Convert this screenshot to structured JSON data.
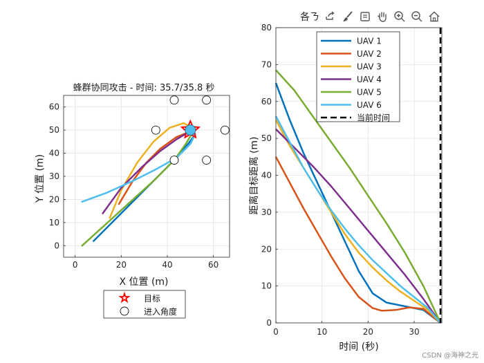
{
  "toolbar": {
    "label": "各ㄋ",
    "icons": [
      "export-icon",
      "brush-icon",
      "data-tips-icon",
      "pan-icon",
      "zoom-in-icon",
      "zoom-out-icon",
      "home-icon"
    ]
  },
  "watermark": "CSDN @海神之光",
  "colors": {
    "UAV 1": "#0072BD",
    "UAV 2": "#D95319",
    "UAV 3": "#EDB120",
    "UAV 4": "#7E2F8E",
    "UAV 5": "#77AC30",
    "UAV 6": "#4DBEEE",
    "target": "#ff0000",
    "uav_marker": "#4DBEEE"
  },
  "chart_data": [
    {
      "type": "line",
      "title": "蜂群协同攻击 - 时间: 35.7/35.8 秒",
      "xlabel": "X 位置 (m)",
      "ylabel": "Y 位置 (m)",
      "xlim": [
        -5,
        67
      ],
      "ylim": [
        -5,
        65
      ],
      "xticks": [
        0,
        20,
        40,
        60
      ],
      "yticks": [
        0,
        10,
        20,
        30,
        40,
        50,
        60
      ],
      "grid": true,
      "legend": {
        "placement": "below",
        "entries": [
          "目标",
          "进入角度"
        ]
      },
      "target": {
        "x": 50,
        "y": 50
      },
      "entry_points": [
        {
          "x": 43,
          "y": 63
        },
        {
          "x": 57,
          "y": 63
        },
        {
          "x": 35,
          "y": 50
        },
        {
          "x": 65,
          "y": 50
        },
        {
          "x": 43,
          "y": 37
        },
        {
          "x": 57,
          "y": 37
        }
      ],
      "series": [
        {
          "name": "UAV 1",
          "points": [
            [
              8,
              2
            ],
            [
              20,
              14
            ],
            [
              32,
              26
            ],
            [
              42,
              36
            ],
            [
              49,
              44
            ],
            [
              52,
              48
            ],
            [
              51,
              50
            ]
          ]
        },
        {
          "name": "UAV 2",
          "points": [
            [
              19,
              18
            ],
            [
              25,
              28
            ],
            [
              31,
              36
            ],
            [
              37,
              42
            ],
            [
              44,
              47
            ],
            [
              49,
              49
            ],
            [
              51,
              50
            ]
          ]
        },
        {
          "name": "UAV 3",
          "points": [
            [
              15,
              12
            ],
            [
              20,
              24
            ],
            [
              27,
              36
            ],
            [
              34,
              45
            ],
            [
              41,
              51
            ],
            [
              47,
              53
            ],
            [
              51,
              51
            ]
          ]
        },
        {
          "name": "UAV 4",
          "points": [
            [
              12,
              14
            ],
            [
              20,
              25
            ],
            [
              29,
              34
            ],
            [
              37,
              41
            ],
            [
              44,
              46
            ],
            [
              49,
              49
            ],
            [
              51,
              50
            ]
          ]
        },
        {
          "name": "UAV 5",
          "points": [
            [
              3,
              0
            ],
            [
              13,
              9
            ],
            [
              24,
              19
            ],
            [
              34,
              28
            ],
            [
              43,
              37
            ],
            [
              48,
              44
            ],
            [
              51,
              49
            ]
          ]
        },
        {
          "name": "UAV 6",
          "points": [
            [
              3,
              19
            ],
            [
              14,
              23
            ],
            [
              25,
              28
            ],
            [
              35,
              33
            ],
            [
              44,
              38
            ],
            [
              50,
              44
            ],
            [
              52,
              48
            ],
            [
              51,
              50
            ]
          ]
        }
      ]
    },
    {
      "type": "line",
      "title": "",
      "xlabel": "时间 (秒)",
      "ylabel": "距离目标距离 (m)",
      "xlim": [
        0,
        36
      ],
      "ylim": [
        0,
        80
      ],
      "xticks": [
        0,
        10,
        20,
        30
      ],
      "yticks": [
        0,
        10,
        20,
        30,
        40,
        50,
        60,
        70,
        80
      ],
      "grid": true,
      "legend": {
        "placement": "top",
        "current_time_label": "当前时间"
      },
      "current_time": 35.7,
      "series": [
        {
          "name": "UAV 1",
          "points": [
            [
              0,
              65
            ],
            [
              3,
              55
            ],
            [
              6,
              46
            ],
            [
              9,
              38
            ],
            [
              12,
              30
            ],
            [
              15,
              22
            ],
            [
              18,
              14
            ],
            [
              21,
              8
            ],
            [
              24,
              5.5
            ],
            [
              28,
              4.5
            ],
            [
              32,
              3.5
            ],
            [
              35.7,
              0
            ]
          ]
        },
        {
          "name": "UAV 2",
          "points": [
            [
              0,
              45
            ],
            [
              3,
              38
            ],
            [
              6,
              31
            ],
            [
              9,
              24.5
            ],
            [
              12,
              18
            ],
            [
              15,
              12
            ],
            [
              18,
              7
            ],
            [
              21,
              4
            ],
            [
              23,
              3.3
            ],
            [
              26,
              3.5
            ],
            [
              29,
              4.2
            ],
            [
              32,
              3.8
            ],
            [
              35.7,
              0
            ]
          ]
        },
        {
          "name": "UAV 3",
          "points": [
            [
              0,
              55
            ],
            [
              3,
              48
            ],
            [
              6,
              42
            ],
            [
              9,
              36
            ],
            [
              12,
              30
            ],
            [
              15,
              24
            ],
            [
              18,
              19
            ],
            [
              21,
              15
            ],
            [
              24,
              11.5
            ],
            [
              27,
              8.5
            ],
            [
              30,
              6
            ],
            [
              33,
              3.5
            ],
            [
              35.7,
              0
            ]
          ]
        },
        {
          "name": "UAV 4",
          "points": [
            [
              0,
              52.5
            ],
            [
              4,
              47.5
            ],
            [
              8,
              42.5
            ],
            [
              12,
              37
            ],
            [
              16,
              31
            ],
            [
              20,
              25
            ],
            [
              24,
              19
            ],
            [
              28,
              13
            ],
            [
              32,
              6.5
            ],
            [
              35.7,
              0
            ]
          ]
        },
        {
          "name": "UAV 5",
          "points": [
            [
              0,
              68.5
            ],
            [
              4,
              63
            ],
            [
              8,
              56
            ],
            [
              12,
              49
            ],
            [
              16,
              42
            ],
            [
              20,
              34.5
            ],
            [
              24,
              27
            ],
            [
              28,
              19
            ],
            [
              32,
              10
            ],
            [
              35.7,
              0
            ]
          ]
        },
        {
          "name": "UAV 6",
          "points": [
            [
              0,
              56
            ],
            [
              3,
              49
            ],
            [
              6,
              42
            ],
            [
              9,
              36
            ],
            [
              12,
              30.5
            ],
            [
              15,
              25.5
            ],
            [
              18,
              21
            ],
            [
              21,
              17
            ],
            [
              24,
              13.5
            ],
            [
              27,
              10
            ],
            [
              30,
              7
            ],
            [
              33,
              4
            ],
            [
              35.7,
              0
            ]
          ]
        }
      ]
    }
  ]
}
